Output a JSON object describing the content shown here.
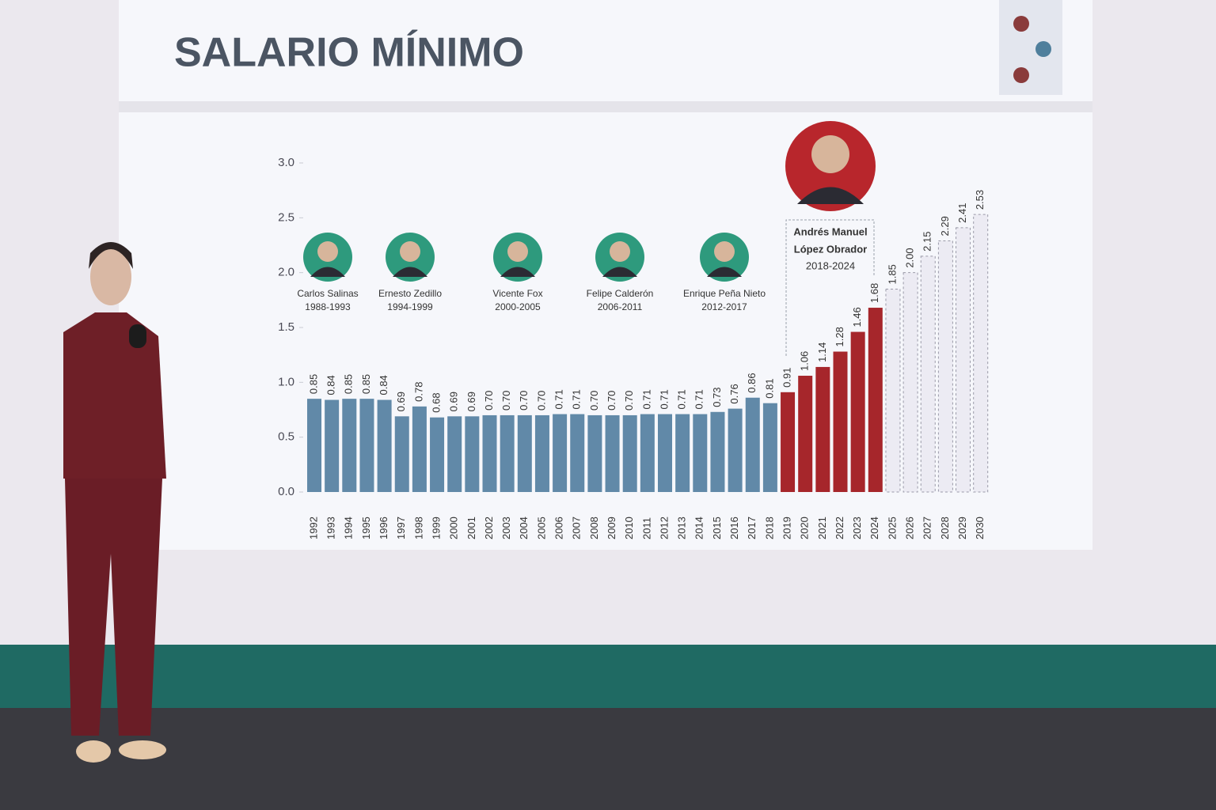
{
  "chart_data": {
    "type": "bar",
    "title": "SALARIO MÍNIMO",
    "categories": [
      "1992",
      "1993",
      "1994",
      "1995",
      "1996",
      "1997",
      "1998",
      "1999",
      "2000",
      "2001",
      "2002",
      "2003",
      "2004",
      "2005",
      "2006",
      "2007",
      "2008",
      "2009",
      "2010",
      "2011",
      "2012",
      "2013",
      "2014",
      "2015",
      "2016",
      "2017",
      "2018",
      "2019",
      "2020",
      "2021",
      "2022",
      "2023",
      "2024",
      "2025",
      "2026",
      "2027",
      "2028",
      "2029",
      "2030"
    ],
    "series": [
      {
        "color": "#6189a8",
        "values": [
          0.85,
          0.84,
          0.85,
          0.85,
          0.84,
          0.69,
          0.78,
          0.68,
          0.69,
          0.69,
          0.7,
          0.7,
          0.7,
          0.7,
          0.71,
          0.71,
          0.7,
          0.7,
          0.7,
          0.71,
          0.71,
          0.71,
          0.71,
          0.73,
          0.76,
          0.86,
          0.81,
          null,
          null,
          null,
          null,
          null,
          null,
          null,
          null,
          null,
          null,
          null,
          null
        ],
        "value_labels": [
          "0.85",
          "0.84",
          "0.85",
          "0.85",
          "0.84",
          "0.69",
          "0.78",
          "0.68",
          "0.69",
          "0.69",
          "0.70",
          "0.70",
          "0.70",
          "0.70",
          "0.71",
          "0.71",
          "0.70",
          "0.70",
          "0.70",
          "0.71",
          "0.71",
          "0.71",
          "0.71",
          "0.73",
          "0.76",
          "0.86",
          "0.81",
          null,
          null,
          null,
          null,
          null,
          null,
          null,
          null,
          null,
          null,
          null,
          null
        ]
      },
      {
        "color": "#a6262b",
        "values": [
          null,
          null,
          null,
          null,
          null,
          null,
          null,
          null,
          null,
          null,
          null,
          null,
          null,
          null,
          null,
          null,
          null,
          null,
          null,
          null,
          null,
          null,
          null,
          null,
          null,
          null,
          null,
          0.91,
          1.06,
          1.14,
          1.28,
          1.46,
          1.68,
          null,
          null,
          null,
          null,
          null,
          null
        ],
        "value_labels": [
          null,
          null,
          null,
          null,
          null,
          null,
          null,
          null,
          null,
          null,
          null,
          null,
          null,
          null,
          null,
          null,
          null,
          null,
          null,
          null,
          null,
          null,
          null,
          null,
          null,
          null,
          null,
          "0.91",
          "1.06",
          "1.14",
          "1.28",
          "1.46",
          "1.68",
          null,
          null,
          null,
          null,
          null,
          null
        ]
      },
      {
        "color": "#ecebf3",
        "dashed": true,
        "values": [
          null,
          null,
          null,
          null,
          null,
          null,
          null,
          null,
          null,
          null,
          null,
          null,
          null,
          null,
          null,
          null,
          null,
          null,
          null,
          null,
          null,
          null,
          null,
          null,
          null,
          null,
          null,
          null,
          null,
          null,
          null,
          null,
          null,
          1.85,
          2.0,
          2.15,
          2.29,
          2.41,
          2.53
        ],
        "value_labels": [
          null,
          null,
          null,
          null,
          null,
          null,
          null,
          null,
          null,
          null,
          null,
          null,
          null,
          null,
          null,
          null,
          null,
          null,
          null,
          null,
          null,
          null,
          null,
          null,
          null,
          null,
          null,
          null,
          null,
          null,
          null,
          null,
          null,
          "1.85",
          "2.00",
          "2.15",
          "2.29",
          "2.41",
          "2.53"
        ]
      }
    ],
    "ylim": [
      0,
      3
    ],
    "yticks": [
      {
        "value": 0,
        "label": "0.0"
      },
      0.5,
      {
        "value": 1,
        "label": "1.0"
      },
      1.5,
      {
        "value": 2,
        "label": "2.0"
      },
      2.5,
      {
        "value": 3,
        "label": "3.0"
      }
    ],
    "annotations": [
      {
        "name": "Carlos Salinas",
        "period": "1988-1993"
      },
      {
        "name": "Ernesto Zedillo",
        "period": "1994-1999"
      },
      {
        "name": "Vicente Fox",
        "period": "2000-2005"
      },
      {
        "name": "Felipe Calderón",
        "period": "2006-2011"
      },
      {
        "name": "Enrique Peña Nieto",
        "period": "2012-2017"
      },
      {
        "name": "Andrés Manuel",
        "name2": "López Obrador",
        "period": "2018-2024"
      }
    ]
  }
}
